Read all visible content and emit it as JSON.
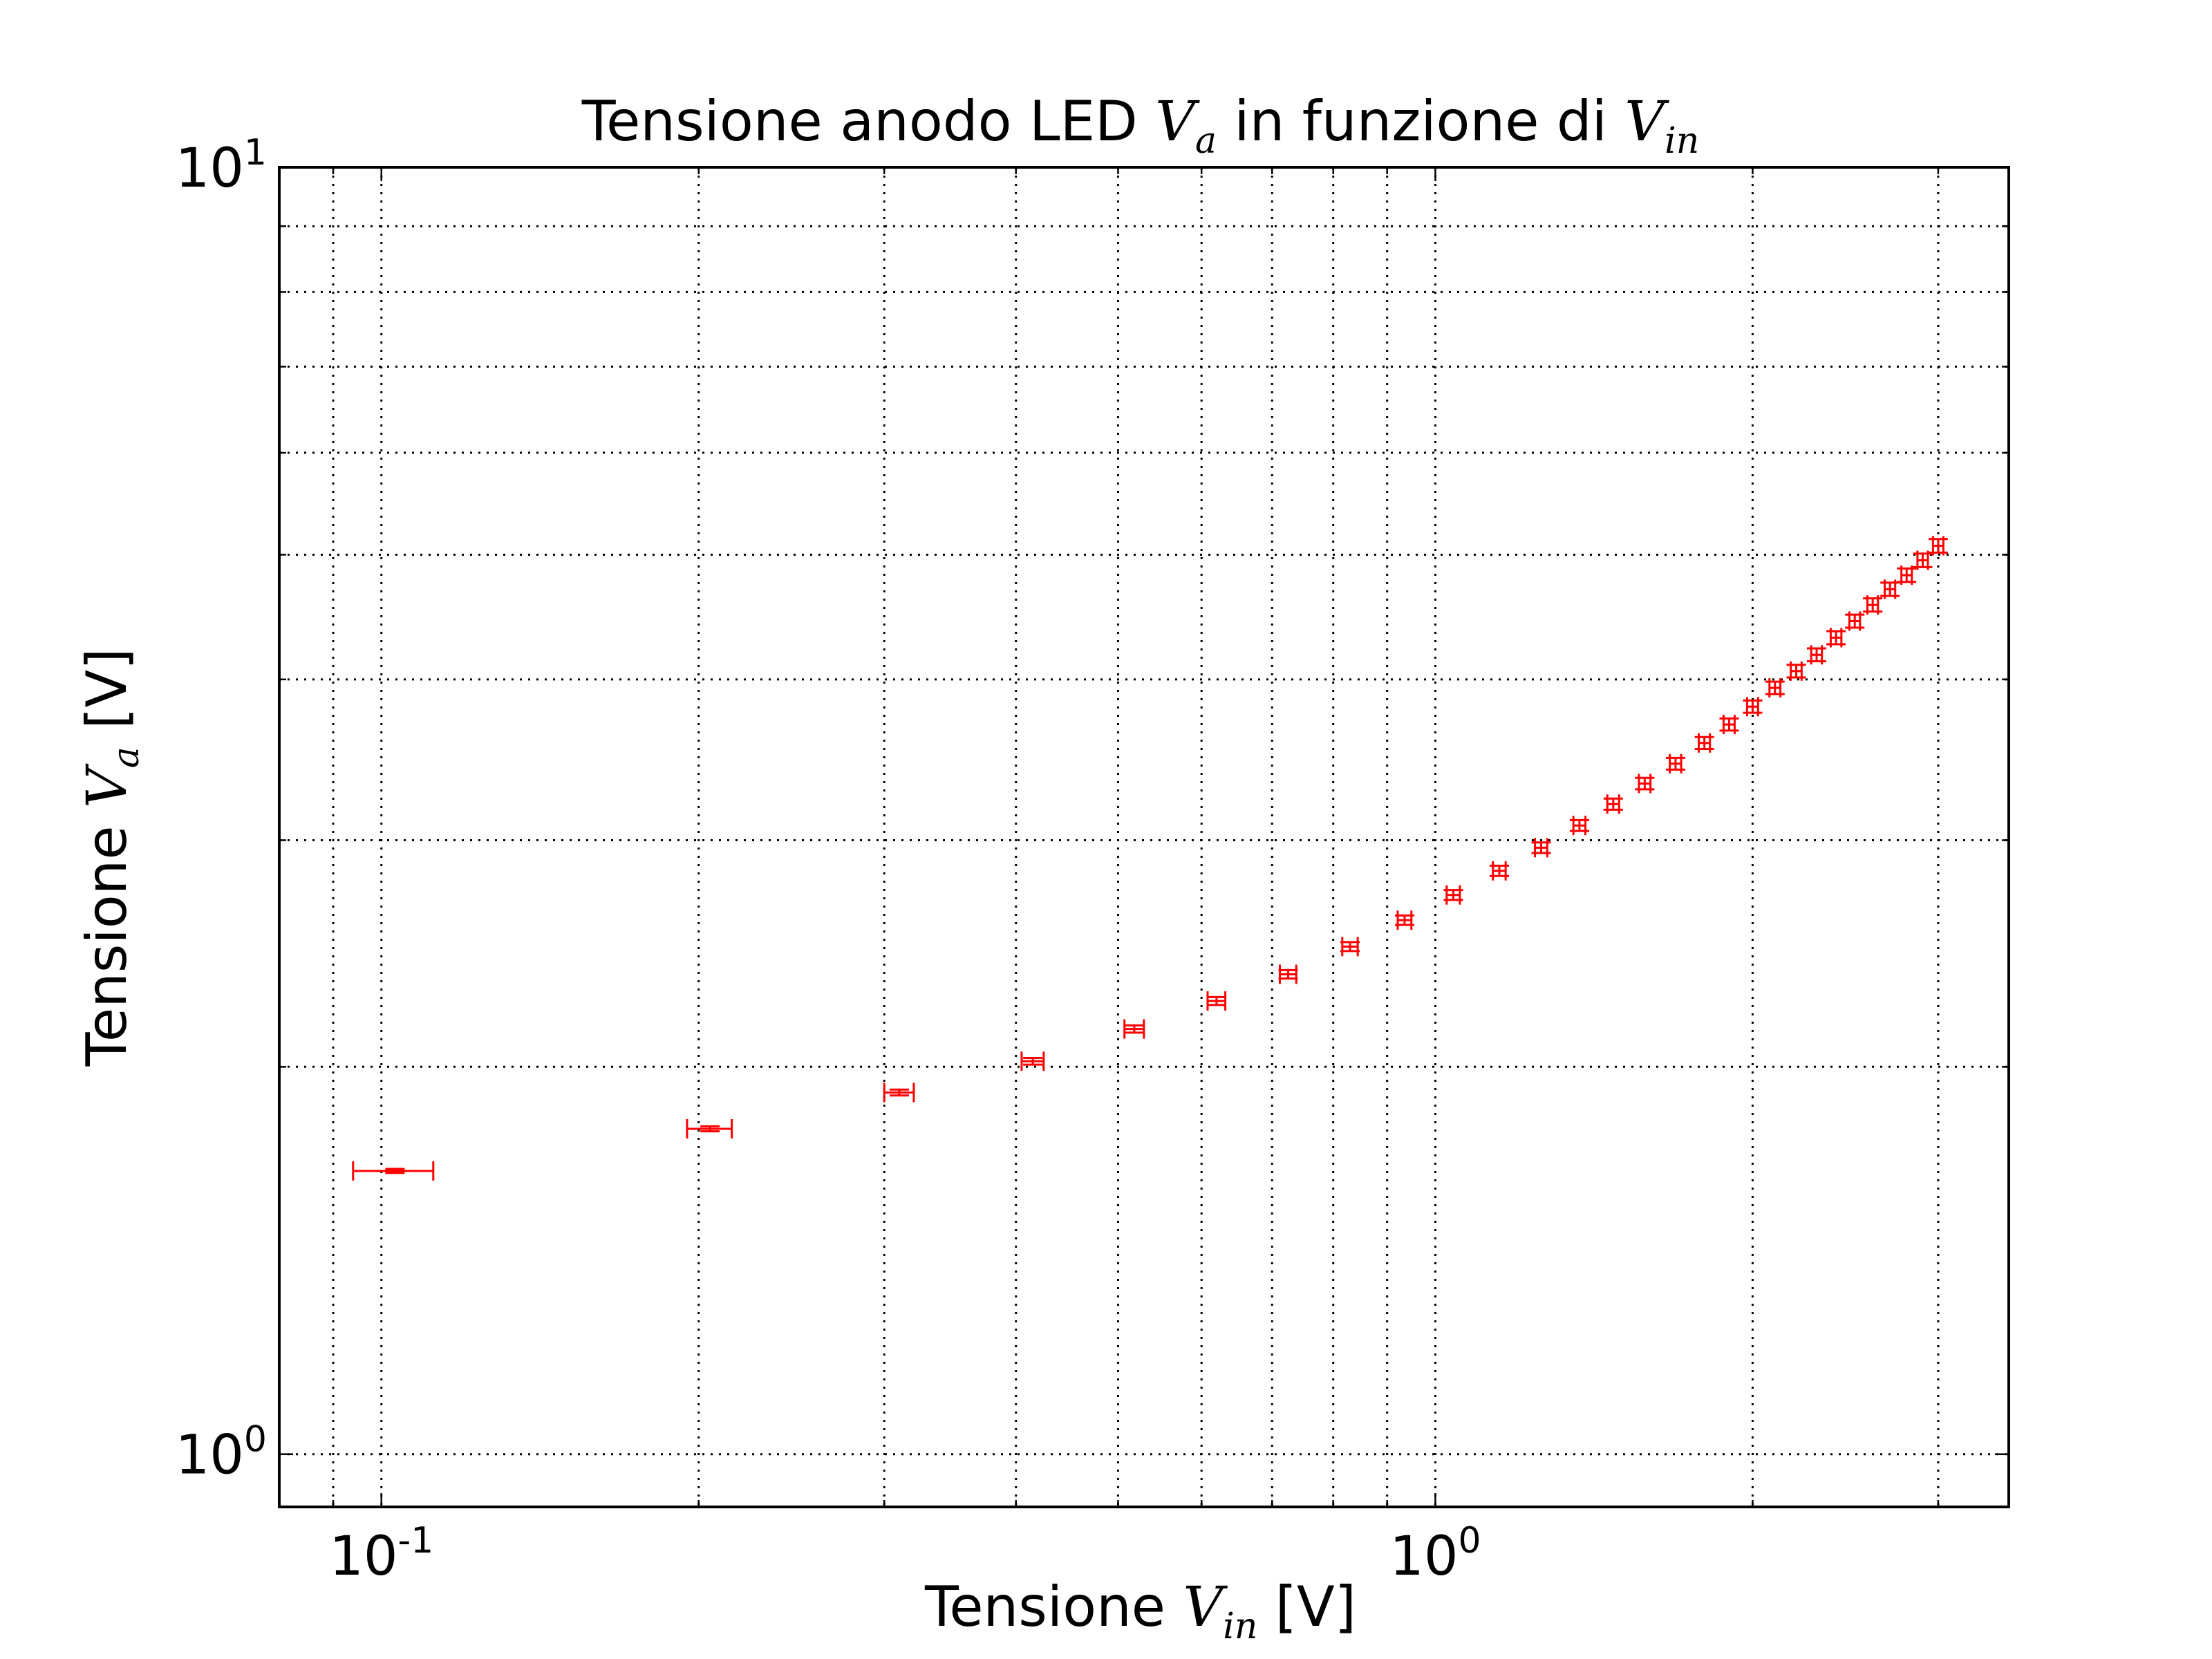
{
  "chart_data": {
    "type": "scatter",
    "title": {
      "prefix": "Tensione anodo LED ",
      "sym1": "V",
      "sub1": "a",
      "middle": " in funzione di ",
      "sym2": "V",
      "sub2": "in"
    },
    "xlabel": {
      "prefix": "Tensione ",
      "sym": "V",
      "sub": "in",
      "suffix": " [V]"
    },
    "ylabel": {
      "prefix": "Tensione ",
      "sym": "V",
      "sub": "a",
      "suffix": " [V]"
    },
    "xscale": "log",
    "yscale": "log",
    "xlim": [
      0.08,
      3.5
    ],
    "ylim": [
      0.91,
      10
    ],
    "grid": true,
    "x_major_ticks": [
      {
        "value": 0.1,
        "base": "10",
        "exp": "-1"
      },
      {
        "value": 1,
        "base": "10",
        "exp": "0"
      }
    ],
    "y_major_ticks": [
      {
        "value": 1,
        "base": "10",
        "exp": "0"
      },
      {
        "value": 10,
        "base": "10",
        "exp": "1"
      }
    ],
    "color": "#ff0000",
    "points": [
      {
        "x": 0.103,
        "y": 1.66,
        "xerr": 0.009,
        "yerr": 0.006
      },
      {
        "x": 0.205,
        "y": 1.79,
        "xerr": 0.01,
        "yerr": 0.008
      },
      {
        "x": 0.31,
        "y": 1.91,
        "xerr": 0.01,
        "yerr": 0.01
      },
      {
        "x": 0.415,
        "y": 2.02,
        "xerr": 0.01,
        "yerr": 0.012
      },
      {
        "x": 0.518,
        "y": 2.14,
        "xerr": 0.011,
        "yerr": 0.014
      },
      {
        "x": 0.62,
        "y": 2.25,
        "xerr": 0.012,
        "yerr": 0.016
      },
      {
        "x": 0.725,
        "y": 2.36,
        "xerr": 0.013,
        "yerr": 0.018
      },
      {
        "x": 0.83,
        "y": 2.48,
        "xerr": 0.014,
        "yerr": 0.02
      },
      {
        "x": 0.935,
        "y": 2.6,
        "xerr": 0.014,
        "yerr": 0.022
      },
      {
        "x": 1.04,
        "y": 2.72,
        "xerr": 0.015,
        "yerr": 0.024
      },
      {
        "x": 1.15,
        "y": 2.84,
        "xerr": 0.016,
        "yerr": 0.026
      },
      {
        "x": 1.26,
        "y": 2.96,
        "xerr": 0.017,
        "yerr": 0.028
      },
      {
        "x": 1.37,
        "y": 3.08,
        "xerr": 0.018,
        "yerr": 0.03
      },
      {
        "x": 1.475,
        "y": 3.2,
        "xerr": 0.019,
        "yerr": 0.032
      },
      {
        "x": 1.58,
        "y": 3.32,
        "xerr": 0.02,
        "yerr": 0.034
      },
      {
        "x": 1.69,
        "y": 3.44,
        "xerr": 0.021,
        "yerr": 0.036
      },
      {
        "x": 1.8,
        "y": 3.57,
        "xerr": 0.022,
        "yerr": 0.038
      },
      {
        "x": 1.9,
        "y": 3.69,
        "xerr": 0.023,
        "yerr": 0.04
      },
      {
        "x": 2.0,
        "y": 3.81,
        "xerr": 0.024,
        "yerr": 0.042
      },
      {
        "x": 2.1,
        "y": 3.94,
        "xerr": 0.025,
        "yerr": 0.044
      },
      {
        "x": 2.2,
        "y": 4.06,
        "xerr": 0.026,
        "yerr": 0.046
      },
      {
        "x": 2.3,
        "y": 4.18,
        "xerr": 0.027,
        "yerr": 0.048
      },
      {
        "x": 2.4,
        "y": 4.31,
        "xerr": 0.028,
        "yerr": 0.05
      },
      {
        "x": 2.5,
        "y": 4.44,
        "xerr": 0.029,
        "yerr": 0.052
      },
      {
        "x": 2.6,
        "y": 4.57,
        "xerr": 0.03,
        "yerr": 0.054
      },
      {
        "x": 2.7,
        "y": 4.7,
        "xerr": 0.031,
        "yerr": 0.056
      },
      {
        "x": 2.8,
        "y": 4.82,
        "xerr": 0.032,
        "yerr": 0.058
      },
      {
        "x": 2.9,
        "y": 4.95,
        "xerr": 0.033,
        "yerr": 0.06
      },
      {
        "x": 3.0,
        "y": 5.08,
        "xerr": 0.034,
        "yerr": 0.062
      }
    ]
  }
}
